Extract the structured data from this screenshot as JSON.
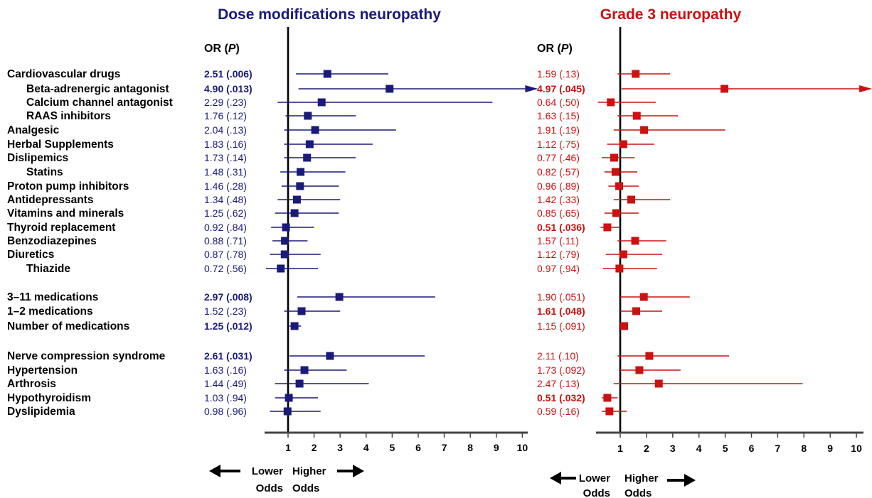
{
  "chart_data": [
    {
      "type": "forest",
      "title": "Dose modifications neuropathy",
      "or_header": "OR",
      "p_header": "P",
      "color": "#1a1a7a",
      "xlim": [
        0,
        10
      ],
      "xticks": [
        "1",
        "2",
        "3",
        "4",
        "5",
        "6",
        "7",
        "8",
        "9",
        "10"
      ],
      "lower_label": [
        "Lower",
        "Odds"
      ],
      "higher_label": [
        "Higher",
        "Odds"
      ],
      "rows": [
        {
          "label": "Cardiovascular drugs",
          "or_text": "2.51 (.006)",
          "or": 2.51,
          "lo": 1.3,
          "hi": 4.85,
          "bold": true
        },
        {
          "label": "Beta-adrenergic antagonist",
          "or_text": "4.90 (.013)",
          "or": 4.9,
          "lo": 1.4,
          "hi": 10,
          "bold": true,
          "arrow": true
        },
        {
          "label": "Calcium channel antagonist",
          "or_text": "2.29 (.23)",
          "or": 2.29,
          "lo": 0.6,
          "hi": 8.85
        },
        {
          "label": "RAAS inhibitors",
          "or_text": "1.76 (.12)",
          "or": 1.76,
          "lo": 0.9,
          "hi": 3.6
        },
        {
          "label": "Analgesic",
          "or_text": "2.04 (.13)",
          "or": 2.04,
          "lo": 0.85,
          "hi": 5.15
        },
        {
          "label": "Herbal Supplements",
          "or_text": "1.83 (.16)",
          "or": 1.83,
          "lo": 0.85,
          "hi": 4.25
        },
        {
          "label": "Dislipemics",
          "or_text": "1.73 (.14)",
          "or": 1.73,
          "lo": 0.85,
          "hi": 3.6
        },
        {
          "label": "Statins",
          "or_text": "1.48 (.31)",
          "or": 1.48,
          "lo": 0.7,
          "hi": 3.2
        },
        {
          "label": "Proton pump inhibitors",
          "or_text": "1.46 (.28)",
          "or": 1.46,
          "lo": 0.75,
          "hi": 2.95
        },
        {
          "label": "Antidepressants",
          "or_text": "1.34 (.48)",
          "or": 1.34,
          "lo": 0.6,
          "hi": 3.0
        },
        {
          "label": "Vitamins and minerals",
          "or_text": "1.25 (.62)",
          "or": 1.25,
          "lo": 0.5,
          "hi": 2.95
        },
        {
          "label": "Thyroid replacement",
          "or_text": "0.92 (.84)",
          "or": 0.92,
          "lo": 0.35,
          "hi": 2.0
        },
        {
          "label": "Benzodiazepines",
          "or_text": "0.88 (.71)",
          "or": 0.88,
          "lo": 0.4,
          "hi": 1.75
        },
        {
          "label": "Diuretics",
          "or_text": "0.87 (.78)",
          "or": 0.87,
          "lo": 0.3,
          "hi": 2.25
        },
        {
          "label": "Thiazide",
          "or_text": "0.72 (.56)",
          "or": 0.72,
          "lo": 0.15,
          "hi": 2.15
        },
        {
          "label": "3–11 medications",
          "or_text": "2.97 (.008)",
          "or": 2.97,
          "lo": 1.35,
          "hi": 6.65,
          "bold": true
        },
        {
          "label": "1–2 medications",
          "or_text": "1.52 (.23)",
          "or": 1.52,
          "lo": 0.85,
          "hi": 3.0
        },
        {
          "label": "Number of medications",
          "or_text": "1.25 (.012)",
          "or": 1.25,
          "lo": 1.05,
          "hi": 1.5,
          "bold": true
        },
        {
          "label": "Nerve compression syndrome",
          "or_text": "2.61 (.031)",
          "or": 2.61,
          "lo": 1.05,
          "hi": 6.25,
          "bold": true
        },
        {
          "label": "Hypertension",
          "or_text": "1.63 (.16)",
          "or": 1.63,
          "lo": 0.85,
          "hi": 3.25
        },
        {
          "label": "Arthrosis",
          "or_text": "1.44 (.49)",
          "or": 1.44,
          "lo": 0.5,
          "hi": 4.1
        },
        {
          "label": "Hypothyroidism",
          "or_text": "1.03 (.94)",
          "or": 1.03,
          "lo": 0.5,
          "hi": 2.15
        },
        {
          "label": "Dyslipidemia",
          "or_text": "0.98 (.96)",
          "or": 0.98,
          "lo": 0.3,
          "hi": 2.25
        }
      ]
    },
    {
      "type": "forest",
      "title": "Grade 3 neuropathy",
      "or_header": "OR",
      "p_header": "P",
      "color": "#cc1111",
      "xlim": [
        0,
        10
      ],
      "xticks": [
        "1",
        "2",
        "3",
        "4",
        "5",
        "6",
        "7",
        "8",
        "9",
        "10"
      ],
      "lower_label": [
        "Lower",
        "Odds"
      ],
      "higher_label": [
        "Higher",
        "Odds"
      ],
      "rows": [
        {
          "or_text": "1.59 (.13)",
          "or": 1.59,
          "lo": 0.9,
          "hi": 2.9
        },
        {
          "or_text": "4.97 (.045)",
          "or": 4.97,
          "lo": 1.05,
          "hi": 10,
          "bold": true,
          "arrow": true
        },
        {
          "or_text": "0.64 (.50)",
          "or": 0.64,
          "lo": 0.15,
          "hi": 2.35
        },
        {
          "or_text": "1.63 (.15)",
          "or": 1.63,
          "lo": 0.9,
          "hi": 3.2
        },
        {
          "or_text": "1.91 (.19)",
          "or": 1.91,
          "lo": 0.75,
          "hi": 5.0
        },
        {
          "or_text": "1.12 (.75)",
          "or": 1.12,
          "lo": 0.5,
          "hi": 2.3
        },
        {
          "or_text": "0.77 (.46)",
          "or": 0.77,
          "lo": 0.3,
          "hi": 1.55
        },
        {
          "or_text": "0.82 (.57)",
          "or": 0.82,
          "lo": 0.4,
          "hi": 1.65
        },
        {
          "or_text": "0.96 (.89)",
          "or": 0.96,
          "lo": 0.55,
          "hi": 1.7
        },
        {
          "or_text": "1.42 (.33)",
          "or": 1.42,
          "lo": 0.75,
          "hi": 2.9
        },
        {
          "or_text": "0.85 (.65)",
          "or": 0.85,
          "lo": 0.4,
          "hi": 1.7
        },
        {
          "or_text": "0.51 (.036)",
          "or": 0.51,
          "lo": 0.25,
          "hi": 0.95,
          "bold": true
        },
        {
          "or_text": "1.57 (.11)",
          "or": 1.57,
          "lo": 0.9,
          "hi": 2.75
        },
        {
          "or_text": "1.12 (.79)",
          "or": 1.12,
          "lo": 0.45,
          "hi": 2.6
        },
        {
          "or_text": "0.97 (.94)",
          "or": 0.97,
          "lo": 0.35,
          "hi": 2.4
        },
        {
          "or_text": "1.90 (.051)",
          "or": 1.9,
          "lo": 1.0,
          "hi": 3.65
        },
        {
          "or_text": "1.61 (.048)",
          "or": 1.61,
          "lo": 1.0,
          "hi": 2.6,
          "bold": true
        },
        {
          "or_text": "1.15 (.091)",
          "or": 1.15,
          "lo": 1.0,
          "hi": 1.3
        },
        {
          "or_text": "2.11 (.10)",
          "or": 2.11,
          "lo": 0.9,
          "hi": 5.15
        },
        {
          "or_text": "1.73 (.092)",
          "or": 1.73,
          "lo": 0.95,
          "hi": 3.3
        },
        {
          "or_text": "2.47 (.13)",
          "or": 2.47,
          "lo": 0.75,
          "hi": 7.95
        },
        {
          "or_text": "0.51 (.032)",
          "or": 0.51,
          "lo": 0.3,
          "hi": 0.9,
          "bold": true
        },
        {
          "or_text": "0.59 (.16)",
          "or": 0.59,
          "lo": 0.3,
          "hi": 1.25
        }
      ]
    }
  ]
}
